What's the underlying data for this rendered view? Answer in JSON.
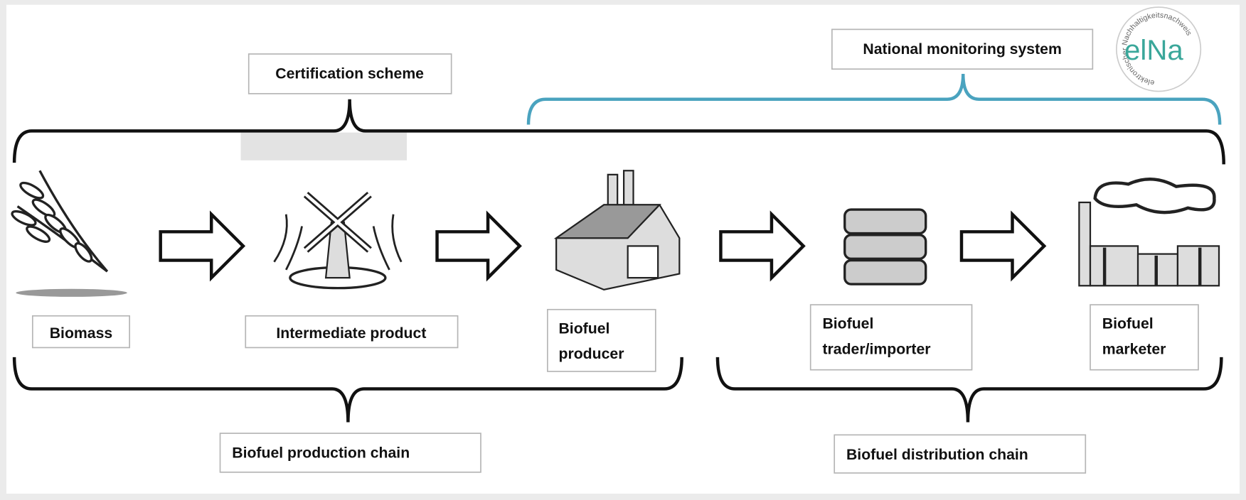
{
  "header": {
    "certification": "Certification scheme",
    "monitoring": "National monitoring system"
  },
  "logo": {
    "text": "elNa",
    "ring": "elektronischer Nachhaltigkeitsnachweis"
  },
  "nodes": [
    {
      "label": [
        "Biomass"
      ]
    },
    {
      "label": [
        "Intermediate product"
      ]
    },
    {
      "label": [
        "Biofuel",
        "producer"
      ]
    },
    {
      "label": [
        "Biofuel",
        "trader/importer"
      ]
    },
    {
      "label": [
        "Biofuel",
        "marketer"
      ]
    }
  ],
  "chains": [
    {
      "label": "Biofuel production chain"
    },
    {
      "label": "Biofuel distribution chain"
    }
  ]
}
